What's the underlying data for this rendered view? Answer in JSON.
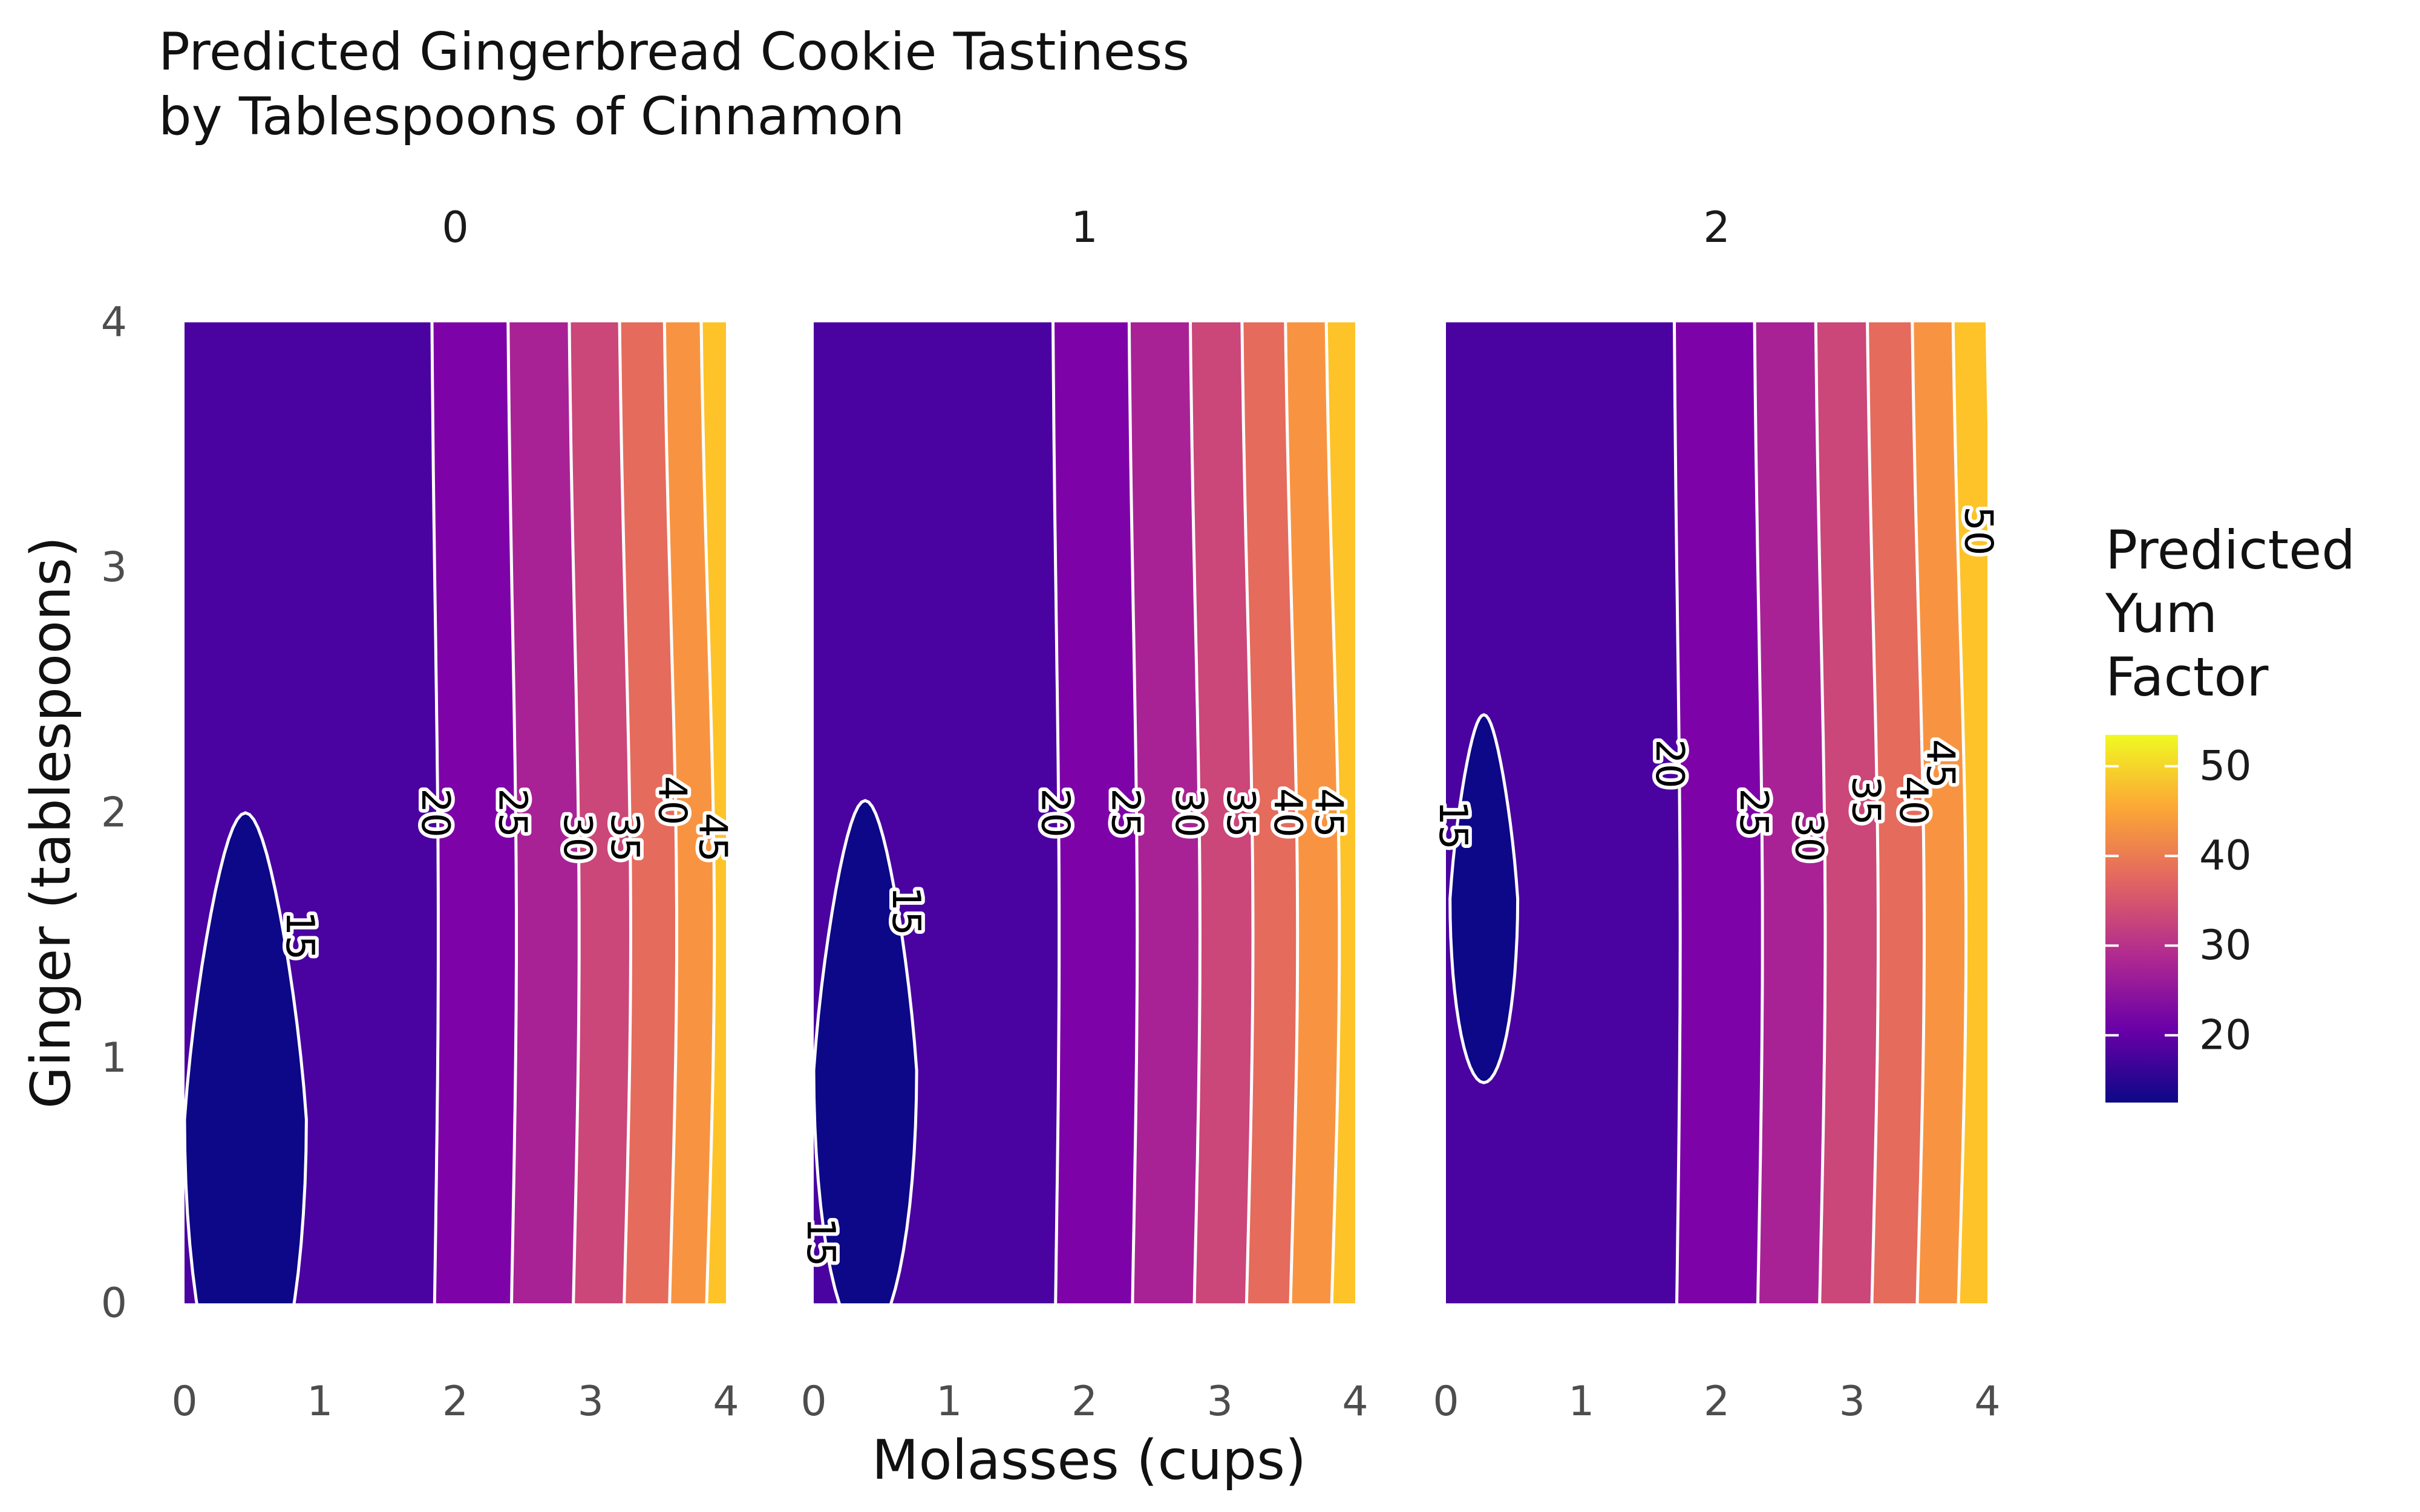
{
  "chart_data": {
    "type": "heatmap",
    "subtype": "filled-contour faceted",
    "title": "Predicted Gingerbread Cookie Tastiness",
    "subtitle": "by Tablespoons of Cinnamon",
    "xlabel": "Molasses (cups)",
    "ylabel": "Ginger (tablespoons)",
    "xlim": [
      0,
      4
    ],
    "ylim": [
      0,
      4
    ],
    "x_ticks": [
      "0",
      "1",
      "2",
      "3",
      "4"
    ],
    "y_ticks": [
      "0",
      "1",
      "2",
      "3",
      "4"
    ],
    "grid": false,
    "legend": {
      "title_lines": [
        "Predicted",
        "Yum",
        "Factor"
      ],
      "placement": "right",
      "ticks": [
        20,
        30,
        40,
        50
      ],
      "range": [
        12.5,
        53.5
      ],
      "colors": [
        "#0d0887",
        "#6a00a8",
        "#b12a90",
        "#e16462",
        "#fca636",
        "#f0f921"
      ]
    },
    "band_colors": {
      "below_15": "#0d0887",
      "15_20": "#4a02a0",
      "20_25": "#7d03a8",
      "25_30": "#a82296",
      "30_35": "#cb4679",
      "35_40": "#e56b5d",
      "40_45": "#f89441",
      "45_50": "#fdc328",
      "above_50": "#f0f921"
    },
    "contour_levels": [
      15,
      20,
      25,
      30,
      35,
      40,
      45,
      50
    ],
    "facets": [
      {
        "label": "0",
        "cinnamon_tbsp": 0,
        "min_region": {
          "center_x": 0.45,
          "center_y": 0.75,
          "half_width_x": 0.45,
          "half_height_y": 1.25,
          "clipped_left": true
        },
        "contours": [
          {
            "level": 15,
            "label": "15",
            "label_at": [
              0.85,
              1.5
            ]
          },
          {
            "level": 20,
            "label": "20",
            "label_at": [
              1.85,
              2.0
            ]
          },
          {
            "level": 25,
            "label": "25",
            "label_at": [
              2.42,
              2.0
            ]
          },
          {
            "level": 30,
            "label": "30",
            "label_at": [
              2.9,
              1.9
            ]
          },
          {
            "level": 35,
            "label": "35",
            "label_at": [
              3.25,
              1.9
            ]
          },
          {
            "level": 40,
            "label": "40",
            "label_at": [
              3.6,
              2.05
            ]
          },
          {
            "level": 45,
            "label": "45",
            "label_at": [
              3.9,
              1.9
            ]
          }
        ]
      },
      {
        "label": "1",
        "cinnamon_tbsp": 1,
        "min_region": {
          "center_x": 0.38,
          "center_y": 0.95,
          "half_width_x": 0.38,
          "half_height_y": 1.1,
          "clipped_left": true
        },
        "contours": [
          {
            "level": 15,
            "label": "15",
            "label_at": [
              0.68,
              1.6
            ]
          },
          {
            "level": 15,
            "label": "15",
            "label_at": [
              0.05,
              0.25
            ]
          },
          {
            "level": 20,
            "label": "20",
            "label_at": [
              1.78,
              2.0
            ]
          },
          {
            "level": 25,
            "label": "25",
            "label_at": [
              2.3,
              2.0
            ]
          },
          {
            "level": 30,
            "label": "30",
            "label_at": [
              2.77,
              2.0
            ]
          },
          {
            "level": 35,
            "label": "35",
            "label_at": [
              3.15,
              2.0
            ]
          },
          {
            "level": 40,
            "label": "40",
            "label_at": [
              3.5,
              2.0
            ]
          },
          {
            "level": 45,
            "label": "45",
            "label_at": [
              3.8,
              2.0
            ]
          }
        ]
      },
      {
        "label": "2",
        "cinnamon_tbsp": 2,
        "min_region": {
          "center_x": 0.28,
          "center_y": 1.65,
          "half_width_x": 0.25,
          "half_height_y": 0.75,
          "clipped_left": false
        },
        "contours": [
          {
            "level": 15,
            "label": "15",
            "label_at": [
              0.05,
              1.95
            ]
          },
          {
            "level": 20,
            "label": "20",
            "label_at": [
              1.65,
              2.2
            ]
          },
          {
            "level": 25,
            "label": "25",
            "label_at": [
              2.27,
              2.0
            ]
          },
          {
            "level": 30,
            "label": "30",
            "label_at": [
              2.68,
              1.9
            ]
          },
          {
            "level": 35,
            "label": "35",
            "label_at": [
              3.1,
              2.05
            ]
          },
          {
            "level": 40,
            "label": "40",
            "label_at": [
              3.45,
              2.05
            ]
          },
          {
            "level": 45,
            "label": "45",
            "label_at": [
              3.65,
              2.2
            ]
          },
          {
            "level": 50,
            "label": "50",
            "label_at": [
              3.93,
              3.15
            ]
          }
        ]
      }
    ],
    "notes": "Contours are near-vertical; each level lies at roughly constant molasses, bowing slightly outward near ginger ≈ 1.5."
  }
}
